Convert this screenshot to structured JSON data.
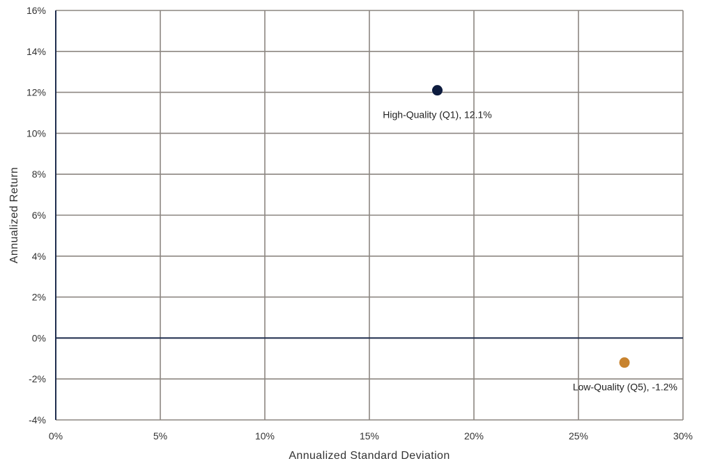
{
  "chart_data": {
    "type": "scatter",
    "xlabel": "Annualized Standard Deviation",
    "ylabel": "Annualized Return",
    "xlim": [
      0,
      30
    ],
    "ylim": [
      -4,
      16
    ],
    "x_ticks": [
      0,
      5,
      10,
      15,
      20,
      25,
      30
    ],
    "y_ticks": [
      -4,
      -2,
      0,
      2,
      4,
      6,
      8,
      10,
      12,
      14,
      16
    ],
    "x_tick_labels": [
      "0%",
      "5%",
      "10%",
      "15%",
      "20%",
      "25%",
      "30%"
    ],
    "y_tick_labels": [
      "-4%",
      "-2%",
      "0%",
      "2%",
      "4%",
      "6%",
      "8%",
      "10%",
      "12%",
      "14%",
      "16%"
    ],
    "grid": true,
    "zero_line": true,
    "points": [
      {
        "x": 18.25,
        "y": 12.1,
        "label": "High-Quality (Q1), 12.1%",
        "color": "#0d1b3e"
      },
      {
        "x": 27.2,
        "y": -1.2,
        "label": "Low-Quality (Q5), -1.2%",
        "color": "#c8832e"
      }
    ]
  },
  "colors": {
    "grid": "#8c8681",
    "zero_line": "#1f2d4e",
    "axis": "#1f2d4e"
  }
}
